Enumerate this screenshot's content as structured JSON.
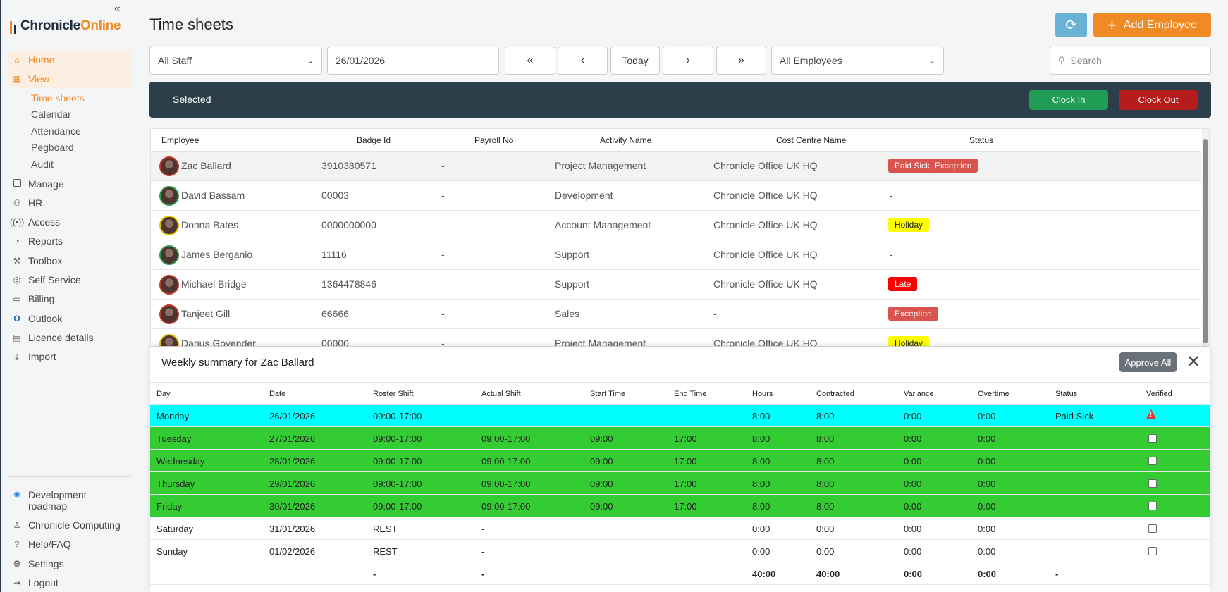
{
  "brand": {
    "part1": "Chronicle",
    "part2": "Online"
  },
  "sidebar": {
    "collapse_icon": "double-chevron-left",
    "nav": [
      {
        "label": "Home",
        "icon": "home-icon",
        "active": true
      },
      {
        "label": "View",
        "icon": "grid-icon",
        "active": true
      },
      {
        "label": "Manage",
        "icon": "square-icon"
      },
      {
        "label": "HR",
        "icon": "people-icon"
      },
      {
        "label": "Access",
        "icon": "broadcast-icon"
      },
      {
        "label": "Reports",
        "icon": "chart-icon"
      },
      {
        "label": "Toolbox",
        "icon": "wrench-icon"
      },
      {
        "label": "Self Service",
        "icon": "fingerprint-icon"
      },
      {
        "label": "Billing",
        "icon": "card-icon"
      },
      {
        "label": "Outlook",
        "icon": "outlook-icon"
      },
      {
        "label": "Licence details",
        "icon": "licence-icon"
      },
      {
        "label": "Import",
        "icon": "download-icon"
      }
    ],
    "view_sub": [
      "Time sheets",
      "Calendar",
      "Attendance",
      "Pegboard",
      "Audit"
    ],
    "bottom": [
      {
        "label": "Development roadmap",
        "icon": "roadmap-icon"
      },
      {
        "label": "Chronicle Computing",
        "icon": "user-icon"
      },
      {
        "label": "Help/FAQ",
        "icon": "help-icon"
      },
      {
        "label": "Settings",
        "icon": "gear-icon"
      },
      {
        "label": "Logout",
        "icon": "logout-icon"
      }
    ]
  },
  "header": {
    "title": "Time sheets",
    "add_employee": "Add Employee"
  },
  "filters": {
    "staff": "All Staff",
    "date": "26/01/2026",
    "today": "Today",
    "employees": "All Employees",
    "search_placeholder": "Search"
  },
  "selected_bar": {
    "label": "Selected",
    "clock_in": "Clock In",
    "clock_out": "Clock Out"
  },
  "employees": {
    "columns": [
      "Employee",
      "Badge Id",
      "Payroll No",
      "Activity Name",
      "Cost Centre Name",
      "Status"
    ],
    "rows": [
      {
        "name": "Zac Ballard",
        "badge": "3910380571",
        "payroll": "-",
        "activity": "Project Management",
        "cost_centre": "Chronicle Office UK HQ",
        "status": "Paid Sick, Exception",
        "status_bg": "#d9534f",
        "status_fg": "#ffffff",
        "avatar_ring": "#c0392b"
      },
      {
        "name": "David Bassam",
        "badge": "00003",
        "payroll": "-",
        "activity": "Development",
        "cost_centre": "Chronicle Office UK HQ",
        "status": "-",
        "avatar_ring": "#2e9e4f"
      },
      {
        "name": "Donna Bates",
        "badge": "0000000000",
        "payroll": "-",
        "activity": "Account Management",
        "cost_centre": "Chronicle Office UK HQ",
        "status": "Holiday",
        "status_bg": "#ffff00",
        "status_fg": "#222222",
        "avatar_ring": "#e6c400"
      },
      {
        "name": "James Berganio",
        "badge": "11116",
        "payroll": "-",
        "activity": "Support",
        "cost_centre": "Chronicle Office UK HQ",
        "status": "-",
        "avatar_ring": "#2e9e4f"
      },
      {
        "name": "Michael Bridge",
        "badge": "1364478846",
        "payroll": "-",
        "activity": "Support",
        "cost_centre": "Chronicle Office UK HQ",
        "status": "Late",
        "status_bg": "#ff0000",
        "status_fg": "#ffffff",
        "avatar_ring": "#c0392b"
      },
      {
        "name": "Tanjeet Gill",
        "badge": "66666",
        "payroll": "-",
        "activity": "Sales",
        "cost_centre": "-",
        "status": "Exception",
        "status_bg": "#d9534f",
        "status_fg": "#ffffff",
        "avatar_ring": "#c0392b"
      },
      {
        "name": "Darius Govender",
        "badge": "00000",
        "payroll": "-",
        "activity": "Project Management",
        "cost_centre": "Chronicle Office UK HQ",
        "status": "Holiday",
        "status_bg": "#ffff00",
        "status_fg": "#222222",
        "avatar_ring": "#e6c400"
      }
    ]
  },
  "weekly": {
    "title": "Weekly summary for Zac Ballard",
    "approve_all": "Approve All",
    "columns": [
      "Day",
      "Date",
      "Roster Shift",
      "Actual Shift",
      "Start Time",
      "End Time",
      "Hours",
      "Contracted",
      "Variance",
      "Overtime",
      "Status",
      "Verified"
    ],
    "rows": [
      {
        "day": "Monday",
        "date": "26/01/2026",
        "roster": "09:00-17:00",
        "actual": "-",
        "start": "",
        "end": "",
        "hours": "8:00",
        "contracted": "8:00",
        "variance": "0:00",
        "overtime": "0:00",
        "status": "Paid Sick",
        "verified": "warning",
        "bg": "#00ffff"
      },
      {
        "day": "Tuesday",
        "date": "27/01/2026",
        "roster": "09:00-17:00",
        "actual": "09:00-17:00",
        "start": "09:00",
        "end": "17:00",
        "hours": "8:00",
        "contracted": "8:00",
        "variance": "0:00",
        "overtime": "0:00",
        "status": "",
        "verified": "checkbox",
        "bg": "#33cc33"
      },
      {
        "day": "Wednesday",
        "date": "28/01/2026",
        "roster": "09:00-17:00",
        "actual": "09:00-17:00",
        "start": "09:00",
        "end": "17:00",
        "hours": "8:00",
        "contracted": "8:00",
        "variance": "0:00",
        "overtime": "0:00",
        "status": "",
        "verified": "checkbox",
        "bg": "#33cc33"
      },
      {
        "day": "Thursday",
        "date": "29/01/2026",
        "roster": "09:00-17:00",
        "actual": "09:00-17:00",
        "start": "09:00",
        "end": "17:00",
        "hours": "8:00",
        "contracted": "8:00",
        "variance": "0:00",
        "overtime": "0:00",
        "status": "",
        "verified": "checkbox",
        "bg": "#33cc33"
      },
      {
        "day": "Friday",
        "date": "30/01/2026",
        "roster": "09:00-17:00",
        "actual": "09:00-17:00",
        "start": "09:00",
        "end": "17:00",
        "hours": "8:00",
        "contracted": "8:00",
        "variance": "0:00",
        "overtime": "0:00",
        "status": "",
        "verified": "checkbox",
        "bg": "#33cc33"
      },
      {
        "day": "Saturday",
        "date": "31/01/2026",
        "roster": "REST",
        "actual": "-",
        "start": "",
        "end": "",
        "hours": "0:00",
        "contracted": "0:00",
        "variance": "0:00",
        "overtime": "0:00",
        "status": "",
        "verified": "checkbox",
        "bg": "#ffffff"
      },
      {
        "day": "Sunday",
        "date": "01/02/2026",
        "roster": "REST",
        "actual": "-",
        "start": "",
        "end": "",
        "hours": "0:00",
        "contracted": "0:00",
        "variance": "0:00",
        "overtime": "0:00",
        "status": "",
        "verified": "checkbox",
        "bg": "#ffffff"
      }
    ],
    "totals": {
      "roster": "-",
      "actual": "-",
      "hours": "40:00",
      "contracted": "40:00",
      "variance": "0:00",
      "overtime": "0:00",
      "status": "-"
    }
  },
  "colors": {
    "accent": "#f08a24",
    "dark_bar": "#2c3e4a",
    "clock_in": "#1f9d55",
    "clock_out": "#b71c1c",
    "refresh": "#6ab1d6"
  }
}
